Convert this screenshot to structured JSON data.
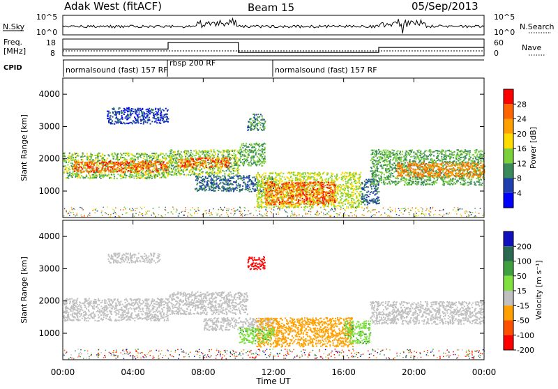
{
  "header": {
    "station": "Adak West (fitACF)",
    "beam": "Beam 15",
    "date": "05/Sep/2013"
  },
  "noise_panel": {
    "left_label": "N.Sky",
    "right_label": "N.Search",
    "left_ticks": [
      "10^5",
      "10^0"
    ],
    "right_ticks": [
      "10^5",
      "10^0"
    ]
  },
  "freq_panel": {
    "left_label_line1": "Freq.",
    "left_label_line2": "[MHz]",
    "right_label": "Nave",
    "left_ticks": [
      "18",
      "8"
    ],
    "right_ticks": [
      "60",
      "0"
    ]
  },
  "cpid": {
    "label": "CPID",
    "segments": [
      {
        "name": "normalsound (fast) 157 RF",
        "start_hour": 0,
        "end_hour": 6
      },
      {
        "name": "rbsp 200 RF",
        "start_hour": 6,
        "end_hour": 12
      },
      {
        "name": "normalsound (fast) 157 RF",
        "start_hour": 12,
        "end_hour": 24
      }
    ]
  },
  "power_panel": {
    "ylabel": "Slant Range [km]",
    "colorbar_label": "Power [dB]",
    "colorbar_ticks": [
      "28",
      "24",
      "20",
      "16",
      "12",
      "8",
      "4"
    ],
    "colors": [
      "#ff0000",
      "#ff6400",
      "#ffa000",
      "#ffdc00",
      "#7ad13a",
      "#3a8a5a",
      "#1f3fae",
      "#0000ff"
    ]
  },
  "velocity_panel": {
    "ylabel": "Slant Range [km]",
    "colorbar_label": "Velocity [m s⁻¹]",
    "colorbar_ticks": [
      "200",
      "100",
      "50",
      "15",
      "-15",
      "-50",
      "-100",
      "-200"
    ],
    "colors": [
      "#1010c0",
      "#2a6a50",
      "#3fa03f",
      "#7fe040",
      "#c0c0c0",
      "#ffa000",
      "#ff5000",
      "#ff0000"
    ]
  },
  "xaxis": {
    "label": "Time UT",
    "ticks": [
      "00:00",
      "04:00",
      "08:00",
      "12:00",
      "16:00",
      "20:00",
      "00:00"
    ]
  },
  "chart_data": {
    "type": "heatmap",
    "x_range_hours": [
      0,
      24
    ],
    "y_range_km": [
      180,
      4500
    ],
    "yticks": [
      1000,
      2000,
      3000,
      4000
    ],
    "frequency_mhz_steps": [
      {
        "start_hour": 0,
        "end_hour": 6,
        "value": 12
      },
      {
        "start_hour": 6,
        "end_hour": 10,
        "value": 16
      },
      {
        "start_hour": 10,
        "end_hour": 12,
        "value": 10
      },
      {
        "start_hour": 12,
        "end_hour": 18,
        "value": 10
      },
      {
        "start_hour": 18,
        "end_hour": 24,
        "value": 13
      }
    ],
    "power_regions": [
      {
        "x": [
          0,
          6
        ],
        "y": [
          1400,
          2200
        ],
        "dB": 14
      },
      {
        "x": [
          0.5,
          6
        ],
        "y": [
          1600,
          1950
        ],
        "dB": 26
      },
      {
        "x": [
          6,
          10
        ],
        "y": [
          1500,
          2300
        ],
        "dB": 14
      },
      {
        "x": [
          6.5,
          9.5
        ],
        "y": [
          1750,
          2050
        ],
        "dB": 26
      },
      {
        "x": [
          7.5,
          12
        ],
        "y": [
          1000,
          1500
        ],
        "dB": 8
      },
      {
        "x": [
          10,
          11.5
        ],
        "y": [
          1800,
          2500
        ],
        "dB": 12
      },
      {
        "x": [
          11,
          17
        ],
        "y": [
          500,
          1600
        ],
        "dB": 16
      },
      {
        "x": [
          11.5,
          15.5
        ],
        "y": [
          600,
          1300
        ],
        "dB": 26
      },
      {
        "x": [
          17,
          18
        ],
        "y": [
          600,
          1400
        ],
        "dB": 8
      },
      {
        "x": [
          17.5,
          24
        ],
        "y": [
          1200,
          2300
        ],
        "dB": 12
      },
      {
        "x": [
          19,
          24
        ],
        "y": [
          1450,
          1900
        ],
        "dB": 24
      },
      {
        "x": [
          2.5,
          6
        ],
        "y": [
          3100,
          3600
        ],
        "dB": 6
      },
      {
        "x": [
          10.5,
          11.5
        ],
        "y": [
          2900,
          3400
        ],
        "dB": 10
      }
    ],
    "velocity_regions": [
      {
        "x": [
          0,
          6
        ],
        "y": [
          1400,
          2100
        ],
        "v": 0
      },
      {
        "x": [
          6,
          10.5
        ],
        "y": [
          1600,
          2300
        ],
        "v": 0
      },
      {
        "x": [
          8,
          12
        ],
        "y": [
          1100,
          1500
        ],
        "v": 0
      },
      {
        "x": [
          11,
          16.5
        ],
        "y": [
          600,
          1500
        ],
        "v": -40
      },
      {
        "x": [
          10,
          12
        ],
        "y": [
          700,
          1200
        ],
        "v": 25
      },
      {
        "x": [
          16,
          17.5
        ],
        "y": [
          700,
          1400
        ],
        "v": 25
      },
      {
        "x": [
          17.5,
          24
        ],
        "y": [
          1300,
          2000
        ],
        "v": 0
      },
      {
        "x": [
          10.5,
          11.5
        ],
        "y": [
          3000,
          3400
        ],
        "v": -200
      },
      {
        "x": [
          2.5,
          5.5
        ],
        "y": [
          3200,
          3500
        ],
        "v": 0
      }
    ]
  }
}
